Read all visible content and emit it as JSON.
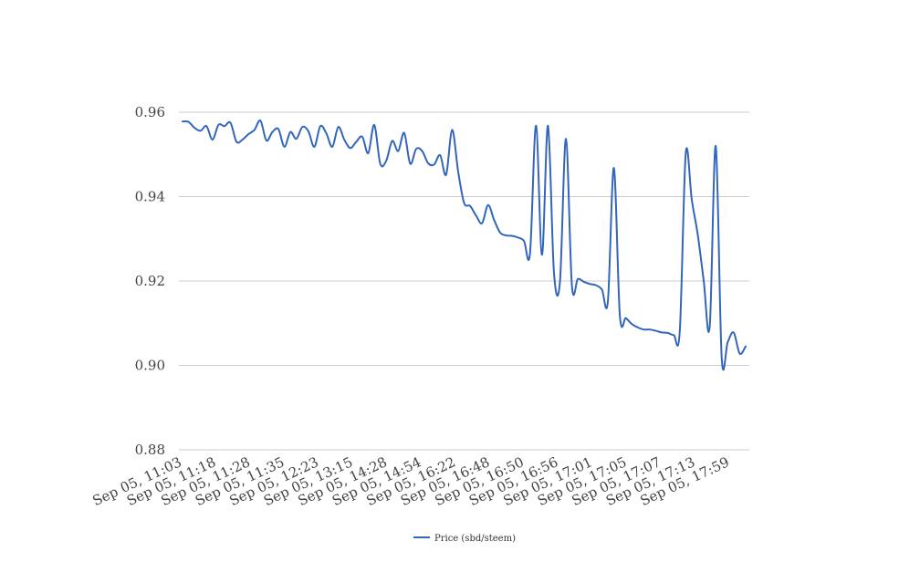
{
  "chart_data": {
    "type": "line",
    "title": "",
    "xlabel": "",
    "ylabel": "",
    "ylim": [
      0.88,
      0.96
    ],
    "yticks": [
      "0.96",
      "0.94",
      "0.92",
      "0.90",
      "0.88"
    ],
    "ytick_values": [
      0.96,
      0.94,
      0.92,
      0.9,
      0.88
    ],
    "grid": true,
    "legend_position": "bottom",
    "xtick_labels": [
      "Sep 05, 11:03",
      "Sep 05, 11:18",
      "Sep 05, 11:28",
      "Sep 05, 11:35",
      "Sep 05, 12:23",
      "Sep 05, 13:15",
      "Sep 05, 14:28",
      "Sep 05, 14:54",
      "Sep 05, 16:22",
      "Sep 05, 16:48",
      "Sep 05, 16:50",
      "Sep 05, 16:56",
      "Sep 05, 17:01",
      "Sep 05, 17:05",
      "Sep 05, 17:07",
      "Sep 05, 17:13",
      "Sep 05, 17:59"
    ],
    "series": [
      {
        "name": "Price (sbd/steem)",
        "color": "#3366bb",
        "values": [
          0.9578,
          0.9577,
          0.9563,
          0.9556,
          0.9567,
          0.9535,
          0.957,
          0.9567,
          0.9575,
          0.953,
          0.9535,
          0.9548,
          0.9558,
          0.958,
          0.9533,
          0.9553,
          0.956,
          0.9518,
          0.9553,
          0.9537,
          0.9565,
          0.9555,
          0.9518,
          0.9567,
          0.955,
          0.9518,
          0.9565,
          0.9535,
          0.9515,
          0.953,
          0.9542,
          0.9503,
          0.957,
          0.9478,
          0.9485,
          0.9532,
          0.9508,
          0.9551,
          0.9478,
          0.9513,
          0.9508,
          0.9479,
          0.9476,
          0.9498,
          0.9452,
          0.9558,
          0.946,
          0.9385,
          0.9378,
          0.9355,
          0.9337,
          0.938,
          0.9345,
          0.9315,
          0.9308,
          0.9307,
          0.9303,
          0.9295,
          0.9265,
          0.9568,
          0.9262,
          0.9568,
          0.922,
          0.9198,
          0.9537,
          0.9188,
          0.9205,
          0.9198,
          0.9193,
          0.919,
          0.918,
          0.9152,
          0.9468,
          0.9118,
          0.9112,
          0.9098,
          0.909,
          0.9085,
          0.9085,
          0.9082,
          0.9078,
          0.9077,
          0.9072,
          0.9081,
          0.9503,
          0.9393,
          0.931,
          0.92,
          0.9092,
          0.952,
          0.9018,
          0.9055,
          0.9078,
          0.9028,
          0.9045
        ]
      }
    ]
  }
}
